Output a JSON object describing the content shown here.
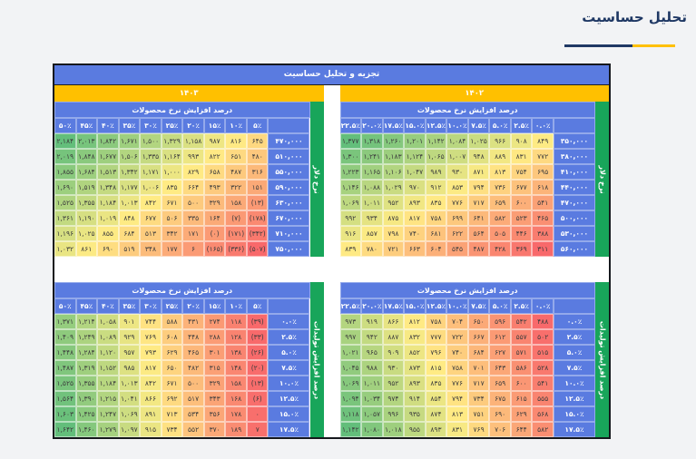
{
  "page": {
    "title": "تحلیل حساسیت"
  },
  "panel": {
    "title": "تجزیه و تحلیل حساسیت"
  },
  "colors": {
    "header_blue": "#5a7be0",
    "year_orange": "#ffc000",
    "side_green": "#18a55a",
    "title_navy": "#1f3864",
    "underline_gold": "#ffc000",
    "scale_min_red": "#F8696B",
    "scale_mid_yellow": "#FFEB84",
    "scale_max_green": "#63BE7B"
  },
  "tables": [
    {
      "id": "top-left",
      "year": "۱۴۰۳",
      "col_title": "درصد افزایش نرخ محصولات",
      "side_label": "نرخ دلار",
      "col_headers": [
        "۵۰٪",
        "۴۵٪",
        "۴۰٪",
        "۳۵٪",
        "۳۰٪",
        "۲۵٪",
        "۲۰٪",
        "۱۵٪",
        "۱۰٪",
        "۵٪"
      ],
      "row_labels": [
        470000,
        510000,
        550000,
        590000,
        630000,
        670000,
        710000,
        750000
      ],
      "values": [
        [
          2184,
          2013,
          1842,
          1671,
          1500,
          1329,
          1158,
          987,
          816,
          645
        ],
        [
          2019,
          1848,
          1677,
          1506,
          1335,
          1164,
          993,
          822,
          651,
          480
        ],
        [
          1855,
          1684,
          1513,
          1342,
          1171,
          1000,
          829,
          658,
          487,
          316
        ],
        [
          1690,
          1519,
          1348,
          1177,
          1006,
          835,
          664,
          493,
          322,
          151
        ],
        [
          1525,
          1355,
          1184,
          1013,
          842,
          671,
          500,
          329,
          158,
          -13
        ],
        [
          1361,
          1190,
          1019,
          848,
          677,
          506,
          335,
          164,
          -7,
          -178
        ],
        [
          1196,
          1025,
          855,
          684,
          513,
          342,
          171,
          "(0)",
          -171,
          -342
        ],
        [
          1032,
          861,
          690,
          519,
          348,
          177,
          6,
          -165,
          -336,
          -507
        ]
      ]
    },
    {
      "id": "top-right",
      "year": "۱۴۰۲",
      "col_title": "درصد افزایش نرخ محصولات",
      "side_label": "نرخ دلار",
      "col_headers": [
        "۲۲.۵٪",
        "۲۰.۰٪",
        "۱۷.۵٪",
        "۱۵.۰٪",
        "۱۲.۵٪",
        "۱۰.۰٪",
        "۷.۵٪",
        "۵.۰٪",
        "۲.۵٪",
        "۰.۰٪"
      ],
      "row_labels": [
        350000,
        380000,
        410000,
        440000,
        470000,
        500000,
        530000,
        560000
      ],
      "values": [
        [
          1377,
          1318,
          1260,
          1201,
          1142,
          1084,
          1025,
          966,
          908,
          849
        ],
        [
          1300,
          1241,
          1183,
          1124,
          1065,
          1007,
          948,
          889,
          831,
          772
        ],
        [
          1223,
          1165,
          1106,
          1047,
          989,
          930,
          871,
          813,
          754,
          695
        ],
        [
          1146,
          1088,
          1029,
          970,
          912,
          853,
          794,
          736,
          677,
          618
        ],
        [
          1069,
          1011,
          952,
          893,
          835,
          776,
          717,
          659,
          600,
          541
        ],
        [
          992,
          934,
          875,
          817,
          758,
          699,
          641,
          582,
          523,
          465
        ],
        [
          916,
          857,
          798,
          740,
          681,
          622,
          564,
          505,
          446,
          388
        ],
        [
          839,
          780,
          721,
          663,
          604,
          545,
          487,
          428,
          369,
          311
        ]
      ]
    },
    {
      "id": "bottom-left",
      "col_title": "درصد افزایش نرخ محصولات",
      "side_label": "درصد افزایش تولیدات",
      "col_headers": [
        "۵۰٪",
        "۴۵٪",
        "۴۰٪",
        "۳۵٪",
        "۳۰٪",
        "۲۵٪",
        "۲۰٪",
        "۱۵٪",
        "۱۰٪",
        "۵٪"
      ],
      "row_labels": [
        "۰.۰٪",
        "۲.۵٪",
        "۵.۰٪",
        "۷.۵٪",
        "۱۰.۰٪",
        "۱۲.۵٪",
        "۱۵.۰٪",
        "۱۷.۵٪"
      ],
      "values": [
        [
          1371,
          1214,
          1058,
          901,
          744,
          588,
          431,
          274,
          118,
          -39
        ],
        [
          1409,
          1249,
          1089,
          929,
          769,
          608,
          448,
          288,
          128,
          -33
        ],
        [
          1448,
          1284,
          1120,
          957,
          793,
          629,
          465,
          301,
          138,
          -26
        ],
        [
          1487,
          1319,
          1152,
          985,
          817,
          650,
          482,
          315,
          148,
          -20
        ],
        [
          1525,
          1355,
          1184,
          1013,
          842,
          671,
          500,
          329,
          158,
          -13
        ],
        [
          1564,
          1390,
          1215,
          1041,
          866,
          692,
          517,
          343,
          168,
          -6
        ],
        [
          1603,
          1425,
          1247,
          1069,
          891,
          713,
          534,
          356,
          178,
          0
        ],
        [
          1642,
          1460,
          1279,
          1097,
          915,
          734,
          552,
          370,
          189,
          7
        ]
      ]
    },
    {
      "id": "bottom-right",
      "col_title": "درصد افزایش نرخ محصولات",
      "side_label": "درصد افزایش تولیدات",
      "col_headers": [
        "۲۲.۵٪",
        "۲۰.۰٪",
        "۱۷.۵٪",
        "۱۵.۰٪",
        "۱۲.۵٪",
        "۱۰.۰٪",
        "۷.۵٪",
        "۵.۰٪",
        "۲.۵٪",
        "۰.۰٪"
      ],
      "row_labels": [
        "۰.۰٪",
        "۲.۵٪",
        "۵.۰٪",
        "۷.۵٪",
        "۱۰.۰٪",
        "۱۲.۵٪",
        "۱۵.۰٪",
        "۱۷.۵٪"
      ],
      "values": [
        [
          973,
          919,
          866,
          812,
          758,
          704,
          650,
          596,
          542,
          488
        ],
        [
          997,
          942,
          887,
          832,
          777,
          722,
          667,
          612,
          557,
          502
        ],
        [
          1021,
          965,
          909,
          852,
          796,
          740,
          684,
          627,
          571,
          515
        ],
        [
          1045,
          988,
          930,
          873,
          815,
          758,
          701,
          643,
          586,
          528
        ],
        [
          1069,
          1011,
          952,
          893,
          835,
          776,
          717,
          659,
          600,
          541
        ],
        [
          1094,
          1034,
          974,
          914,
          854,
          794,
          734,
          675,
          615,
          555
        ],
        [
          1118,
          1057,
          996,
          935,
          874,
          813,
          751,
          690,
          629,
          568
        ],
        [
          1142,
          1080,
          1018,
          955,
          893,
          831,
          769,
          706,
          644,
          582
        ]
      ]
    }
  ]
}
